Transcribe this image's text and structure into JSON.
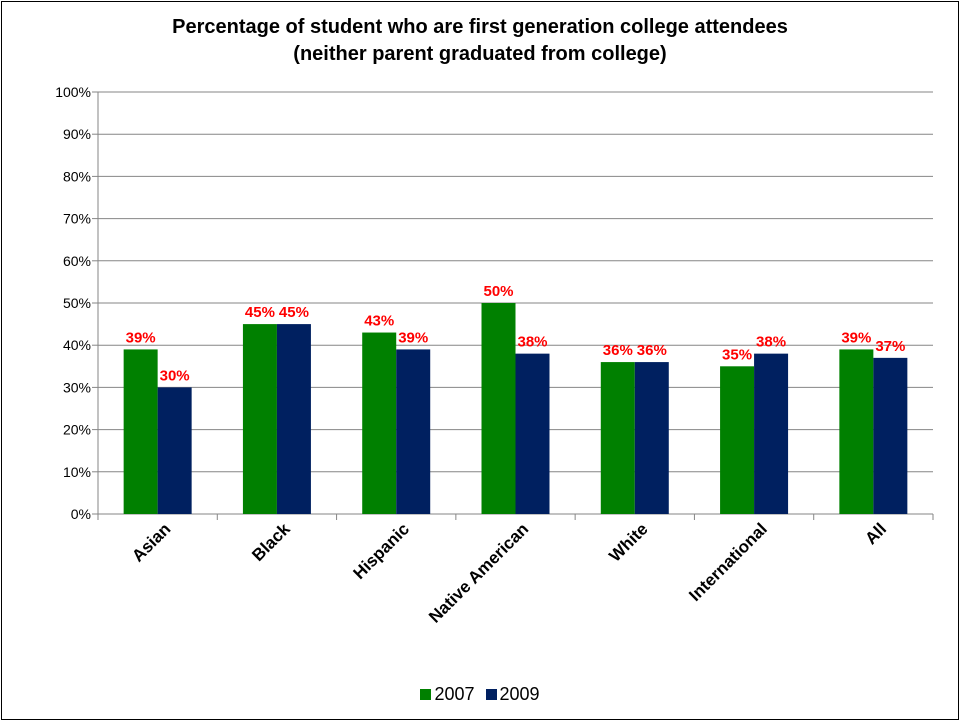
{
  "chart_data": {
    "type": "bar",
    "title_line1": "Percentage of student who are first generation college attendees",
    "title_line2": "(neither parent graduated from college)",
    "categories": [
      "Asian",
      "Black",
      "Hispanic",
      "Native American",
      "White",
      "International",
      "All"
    ],
    "series": [
      {
        "name": "2007",
        "color": "#008000",
        "values": [
          39,
          45,
          43,
          50,
          36,
          35,
          39
        ]
      },
      {
        "name": "2009",
        "color": "#002060",
        "values": [
          30,
          45,
          39,
          38,
          36,
          38,
          37
        ]
      }
    ],
    "ylim": [
      0,
      100
    ],
    "ytick_step": 10,
    "ytick_labels": [
      "0%",
      "10%",
      "20%",
      "30%",
      "40%",
      "50%",
      "60%",
      "70%",
      "80%",
      "90%",
      "100%"
    ],
    "data_label_color": "#ff0000",
    "grid": true,
    "legend_position": "bottom"
  }
}
